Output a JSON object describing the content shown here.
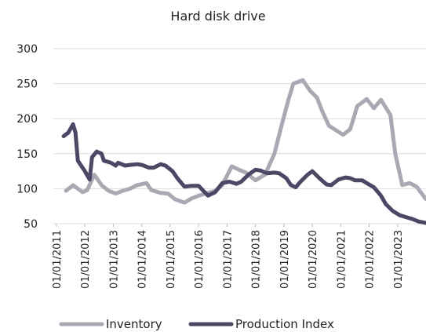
{
  "chart_data": {
    "type": "line",
    "title": "Hard disk drive",
    "xlim": [
      "2011-01",
      "2024-01"
    ],
    "xticks": [
      {
        "value": "2011-01",
        "label": "01/01/2011"
      },
      {
        "value": "2012-01",
        "label": "01/01/2012"
      },
      {
        "value": "2013-01",
        "label": "01/01/2013"
      },
      {
        "value": "2014-01",
        "label": "01/01/2014"
      },
      {
        "value": "2015-01",
        "label": "01/01/2015"
      },
      {
        "value": "2016-01",
        "label": "01/01/2016"
      },
      {
        "value": "2017-01",
        "label": "01/01/2017"
      },
      {
        "value": "2018-01",
        "label": "01/01/2018"
      },
      {
        "value": "2019-01",
        "label": "01/01/2019"
      },
      {
        "value": "2020-01",
        "label": "01/01/2020"
      },
      {
        "value": "2021-01",
        "label": "01/01/2021"
      },
      {
        "value": "2022-01",
        "label": "01/01/2022"
      },
      {
        "value": "2023-01",
        "label": "01/01/2023"
      }
    ],
    "ylim": [
      50,
      300
    ],
    "yticks": [
      50,
      100,
      150,
      200,
      250,
      300
    ],
    "grid": true,
    "legend": "bottom",
    "series": [
      {
        "name": "Inventory",
        "color": "#a9a9b4",
        "x": [
          "2011-05",
          "2011-08",
          "2011-10",
          "2011-12",
          "2012-02",
          "2012-05",
          "2012-08",
          "2012-11",
          "2013-02",
          "2013-05",
          "2013-08",
          "2013-11",
          "2014-03",
          "2014-05",
          "2014-09",
          "2014-12",
          "2015-03",
          "2015-07",
          "2015-10",
          "2016-01",
          "2016-04",
          "2016-08",
          "2016-11",
          "2017-03",
          "2017-06",
          "2017-09",
          "2018-01",
          "2018-05",
          "2018-09",
          "2018-12",
          "2019-03",
          "2019-05",
          "2019-09",
          "2019-12",
          "2020-03",
          "2020-05",
          "2020-08",
          "2021-02",
          "2021-05",
          "2021-08",
          "2021-12",
          "2022-03",
          "2022-06",
          "2022-10",
          "2022-12",
          "2023-03",
          "2023-06",
          "2023-09",
          "2024-01"
        ],
        "values": [
          97,
          105,
          100,
          95,
          98,
          120,
          105,
          97,
          93,
          97,
          100,
          105,
          108,
          98,
          94,
          93,
          85,
          80,
          86,
          90,
          93,
          97,
          105,
          132,
          127,
          123,
          112,
          120,
          150,
          190,
          228,
          250,
          255,
          240,
          230,
          212,
          190,
          177,
          185,
          218,
          228,
          215,
          227,
          205,
          150,
          105,
          108,
          103,
          85
        ]
      },
      {
        "name": "Production Index",
        "color": "#4b4764",
        "x": [
          "2011-04",
          "2011-06",
          "2011-08",
          "2011-09",
          "2011-10",
          "2012-01",
          "2012-03",
          "2012-04",
          "2012-06",
          "2012-08",
          "2012-09",
          "2012-12",
          "2013-02",
          "2013-03",
          "2013-06",
          "2013-08",
          "2013-11",
          "2014-01",
          "2014-04",
          "2014-06",
          "2014-09",
          "2014-11",
          "2015-02",
          "2015-04",
          "2015-07",
          "2015-10",
          "2016-01",
          "2016-03",
          "2016-05",
          "2016-08",
          "2016-11",
          "2017-02",
          "2017-05",
          "2017-07",
          "2017-10",
          "2018-01",
          "2018-03",
          "2018-06",
          "2018-09",
          "2018-11",
          "2019-02",
          "2019-04",
          "2019-06",
          "2019-08",
          "2019-11",
          "2020-01",
          "2020-04",
          "2020-07",
          "2020-09",
          "2020-12",
          "2021-03",
          "2021-05",
          "2021-07",
          "2021-10",
          "2021-12",
          "2022-03",
          "2022-06",
          "2022-08",
          "2022-11",
          "2023-02",
          "2023-04",
          "2023-07",
          "2023-10",
          "2024-01"
        ],
        "values": [
          175,
          180,
          192,
          180,
          140,
          125,
          113,
          145,
          153,
          150,
          140,
          137,
          133,
          137,
          133,
          134,
          135,
          134,
          130,
          130,
          135,
          133,
          125,
          115,
          103,
          104,
          104,
          97,
          90,
          95,
          108,
          110,
          107,
          110,
          120,
          127,
          126,
          122,
          123,
          122,
          115,
          105,
          102,
          110,
          120,
          125,
          115,
          106,
          105,
          113,
          116,
          115,
          112,
          112,
          108,
          102,
          90,
          78,
          68,
          62,
          60,
          57,
          53,
          51
        ]
      }
    ]
  }
}
